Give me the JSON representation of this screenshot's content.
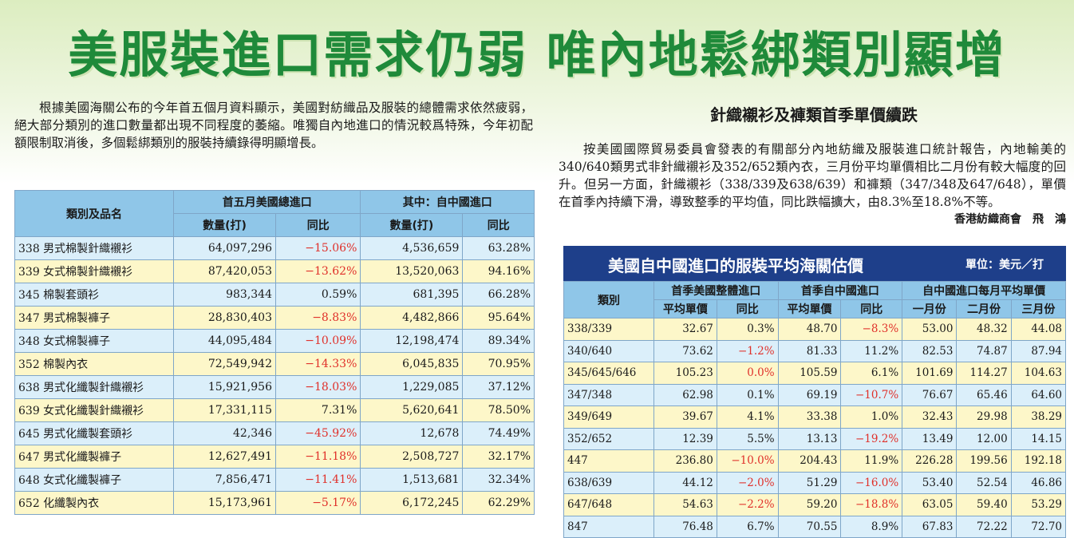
{
  "headline": "美服裝進口需求仍弱  唯內地鬆綁類別顯增",
  "lead": "根據美國海關公布的今年首五個月資料顯示，美國對紡織品及服裝的總體需求依然疲弱，絕大部分類別的進口數量都出現不同程度的萎縮。唯獨自內地進口的情況較爲特殊，今年初配額限制取消後，多個鬆綁類別的服裝持續錄得明顯增長。",
  "sub_title": "針織襯衫及褲類首季單價續跌",
  "sub_body": "按美國國際貿易委員會發表的有關部分內地紡織及服裝進口統計報告，內地輸美的340/640類男式非針織襯衫及352/652類內衣，三月份平均單價相比二月份有較大幅度的回升。但另一方面，針織襯衫（338/339及638/639）和褲類（347/348及647/648），單價在首季內持續下滑，導致整季的平均值，同比跌幅擴大，由8.3%至18.8%不等。",
  "byline": "香港紡織商會　飛　鴻",
  "table1": {
    "col_category": "類別及品名",
    "group_total": "首五月美國總進口",
    "group_china": "其中：自中國進口",
    "col_qty": "數量(打)",
    "col_yoy": "同比",
    "rows": [
      {
        "name": "338 男式棉製針織襯衫",
        "total_qty": "64,097,296",
        "total_yoy": "−15.06%",
        "china_qty": "4,536,659",
        "china_yoy": "63.28%"
      },
      {
        "name": "339 女式棉製針織襯衫",
        "total_qty": "87,420,053",
        "total_yoy": "−13.62%",
        "china_qty": "13,520,063",
        "china_yoy": "94.16%"
      },
      {
        "name": "345 棉製套頭衫",
        "total_qty": "983,344",
        "total_yoy": "0.59%",
        "china_qty": "681,395",
        "china_yoy": "66.28%"
      },
      {
        "name": "347 男式棉製褲子",
        "total_qty": "28,830,403",
        "total_yoy": "−8.83%",
        "china_qty": "4,482,866",
        "china_yoy": "95.64%"
      },
      {
        "name": "348 女式棉製褲子",
        "total_qty": "44,095,484",
        "total_yoy": "−10.09%",
        "china_qty": "12,198,474",
        "china_yoy": "89.34%"
      },
      {
        "name": "352 棉製內衣",
        "total_qty": "72,549,942",
        "total_yoy": "−14.33%",
        "china_qty": "6,045,835",
        "china_yoy": "70.95%"
      },
      {
        "name": "638 男式化纖製針織襯衫",
        "total_qty": "15,921,956",
        "total_yoy": "−18.03%",
        "china_qty": "1,229,085",
        "china_yoy": "37.12%"
      },
      {
        "name": "639 女式化纖製針織襯衫",
        "total_qty": "17,331,115",
        "total_yoy": "7.31%",
        "china_qty": "5,620,641",
        "china_yoy": "78.50%"
      },
      {
        "name": "645 男式化纖製套頭衫",
        "total_qty": "42,346",
        "total_yoy": "−45.92%",
        "china_qty": "12,678",
        "china_yoy": "74.49%"
      },
      {
        "name": "647 男式化纖製褲子",
        "total_qty": "12,627,491",
        "total_yoy": "−11.18%",
        "china_qty": "2,508,727",
        "china_yoy": "32.17%"
      },
      {
        "name": "648 女式化纖製褲子",
        "total_qty": "7,856,471",
        "total_yoy": "−11.41%",
        "china_qty": "1,513,681",
        "china_yoy": "32.34%"
      },
      {
        "name": "652 化纖製內衣",
        "total_qty": "15,173,961",
        "total_yoy": "−5.17%",
        "china_qty": "6,172,245",
        "china_yoy": "62.29%"
      }
    ]
  },
  "table2": {
    "title": "美國自中國進口的服裝平均海關估價",
    "unit": "單位：美元／打",
    "col_category": "類別",
    "group_total": "首季美國整體進口",
    "group_china": "首季自中國進口",
    "group_monthly": "自中國進口每月平均單價",
    "col_price": "平均單價",
    "col_yoy": "同比",
    "col_jan": "一月份",
    "col_feb": "二月份",
    "col_mar": "三月份",
    "rows": [
      {
        "cat": "338/339",
        "total_price": "32.67",
        "total_yoy": "0.3%",
        "china_price": "48.70",
        "china_yoy": "−8.3%",
        "jan": "53.00",
        "feb": "48.32",
        "mar": "44.08"
      },
      {
        "cat": "340/640",
        "total_price": "73.62",
        "total_yoy": "−1.2%",
        "china_price": "81.33",
        "china_yoy": "11.2%",
        "jan": "82.53",
        "feb": "74.87",
        "mar": "87.94"
      },
      {
        "cat": "345/645/646",
        "total_price": "105.23",
        "total_yoy": "0.0%",
        "china_price": "105.59",
        "china_yoy": "6.1%",
        "jan": "101.69",
        "feb": "114.27",
        "mar": "104.63"
      },
      {
        "cat": "347/348",
        "total_price": "62.98",
        "total_yoy": "0.1%",
        "china_price": "69.19",
        "china_yoy": "−10.7%",
        "jan": "76.67",
        "feb": "65.46",
        "mar": "64.60"
      },
      {
        "cat": "349/649",
        "total_price": "39.67",
        "total_yoy": "4.1%",
        "china_price": "33.38",
        "china_yoy": "1.0%",
        "jan": "32.43",
        "feb": "29.98",
        "mar": "38.29"
      },
      {
        "cat": "352/652",
        "total_price": "12.39",
        "total_yoy": "5.5%",
        "china_price": "13.13",
        "china_yoy": "−19.2%",
        "jan": "13.49",
        "feb": "12.00",
        "mar": "14.15"
      },
      {
        "cat": "447",
        "total_price": "236.80",
        "total_yoy": "−10.0%",
        "china_price": "204.43",
        "china_yoy": "11.9%",
        "jan": "226.28",
        "feb": "199.56",
        "mar": "192.18"
      },
      {
        "cat": "638/639",
        "total_price": "44.12",
        "total_yoy": "−2.0%",
        "china_price": "51.29",
        "china_yoy": "−16.0%",
        "jan": "53.40",
        "feb": "52.54",
        "mar": "46.86"
      },
      {
        "cat": "647/648",
        "total_price": "54.63",
        "total_yoy": "−2.2%",
        "china_price": "59.20",
        "china_yoy": "−18.8%",
        "jan": "63.05",
        "feb": "59.40",
        "mar": "53.29"
      },
      {
        "cat": "847",
        "total_price": "76.48",
        "total_yoy": "6.7%",
        "china_price": "70.55",
        "china_yoy": "8.9%",
        "jan": "67.83",
        "feb": "72.22",
        "mar": "72.70"
      }
    ]
  },
  "colors": {
    "headline": "#1f8a3a",
    "header_blue": "#8fc6e8",
    "title_bar": "#1e3f8a",
    "row_blue": "#dbeffa",
    "row_yellow": "#fdf7c9",
    "negative": "#e0302a"
  }
}
